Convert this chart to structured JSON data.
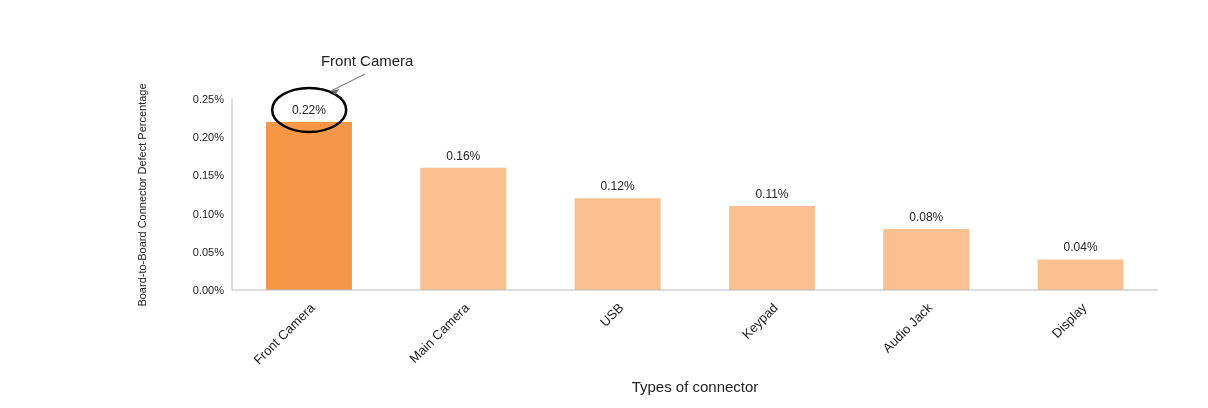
{
  "chart_data": {
    "type": "bar",
    "xlabel": "Types of connector",
    "ylabel": "Board-to-Board Connector Defect Percentage",
    "categories": [
      "Front Camera",
      "Main Camera",
      "USB",
      "Keypad",
      "Audio Jack",
      "Display"
    ],
    "values": [
      0.22,
      0.16,
      0.12,
      0.11,
      0.08,
      0.04
    ],
    "colors": [
      "#f79646",
      "#fac090",
      "#fac090",
      "#fac090",
      "#fac090",
      "#fac090"
    ],
    "value_labels": [
      "0.22%",
      "0.16%",
      "0.12%",
      "0.11%",
      "0.08%",
      "0.04%"
    ],
    "ylim": [
      0,
      0.25
    ],
    "yticks": [
      {
        "value": 0,
        "label": "0.00%"
      },
      {
        "value": 0.05,
        "label": "0.05%"
      },
      {
        "value": 0.1,
        "label": "0.10%"
      },
      {
        "value": 0.15,
        "label": "0.15%"
      },
      {
        "value": 0.2,
        "label": "0.20%"
      },
      {
        "value": 0.25,
        "label": "0.25%"
      }
    ],
    "annotations": [
      "Front Camera"
    ],
    "grid": false,
    "legend": false
  }
}
